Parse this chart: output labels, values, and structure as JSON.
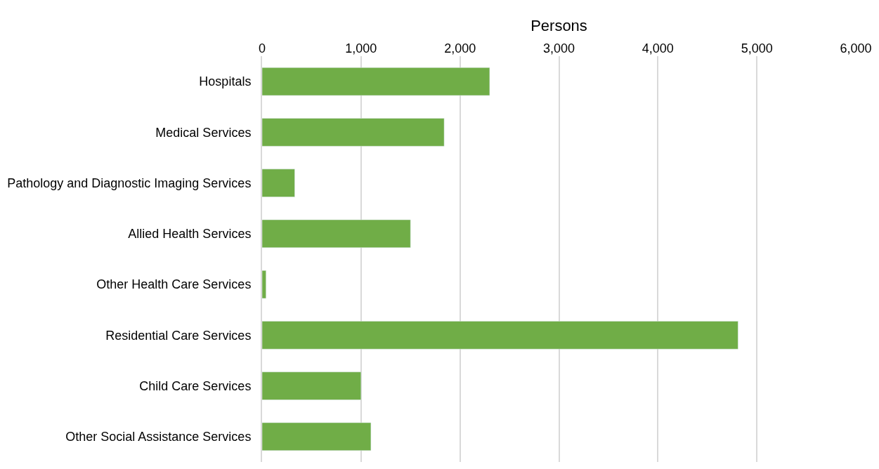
{
  "chart_data": {
    "type": "bar",
    "orientation": "horizontal",
    "xlabel": "Persons",
    "categories": [
      "Hospitals",
      "Medical Services",
      "Pathology and Diagnostic Imaging Services",
      "Allied Health Services",
      "Other Health Care Services",
      "Residential Care Services",
      "Child Care Services",
      "Other Social Assistance Services"
    ],
    "values": [
      2300,
      1840,
      330,
      1500,
      40,
      4810,
      1000,
      1100
    ],
    "color": "#70ad47",
    "xlim": [
      0,
      6000
    ],
    "xticks": [
      {
        "value": 0,
        "label": "0"
      },
      {
        "value": 1000,
        "label": "1,000"
      },
      {
        "value": 2000,
        "label": "2,000"
      },
      {
        "value": 3000,
        "label": "3,000"
      },
      {
        "value": 4000,
        "label": "4,000"
      },
      {
        "value": 5000,
        "label": "5,000"
      },
      {
        "value": 6000,
        "label": "6,000"
      }
    ],
    "grid": "x",
    "legend": false
  }
}
